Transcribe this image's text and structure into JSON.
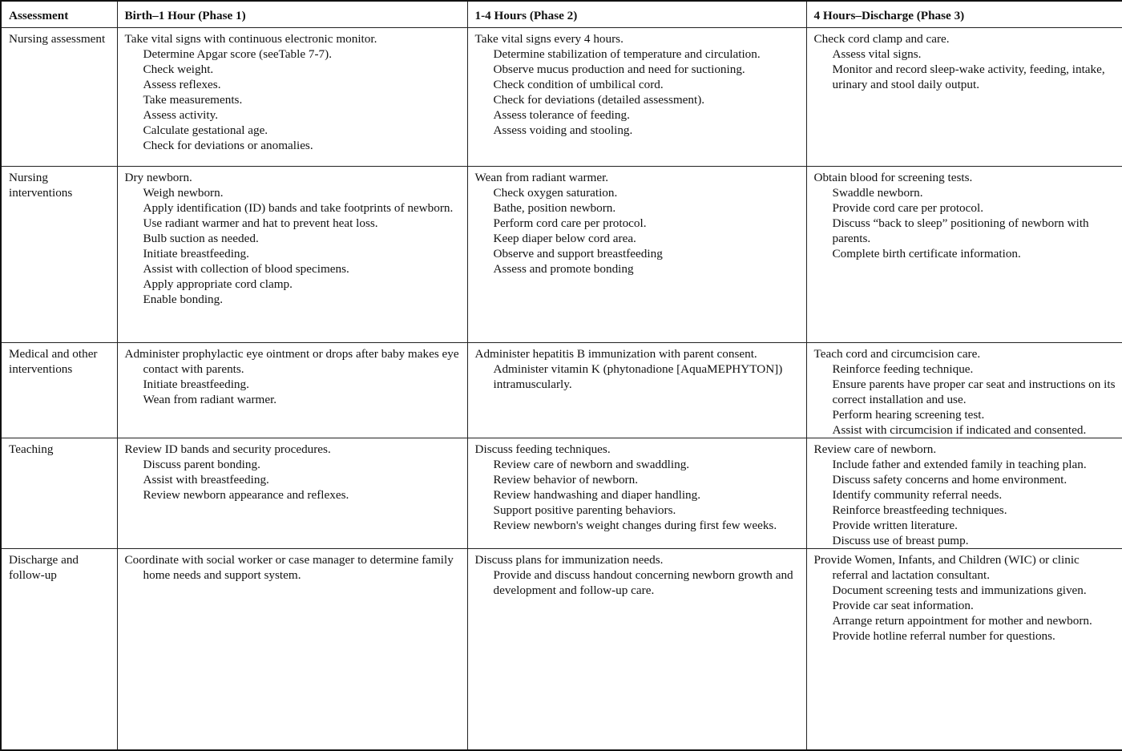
{
  "headers": [
    "Assessment",
    "Birth–1 Hour (Phase 1)",
    "1-4 Hours (Phase 2)",
    "4 Hours–Discharge (Phase 3)"
  ],
  "rows": [
    {
      "label": "Nursing assessment",
      "cells": [
        {
          "first": "Take vital signs with continuous electronic monitor.",
          "items": [
            "Determine Apgar score (seeTable 7-7).",
            "Check weight.",
            "Assess reflexes.",
            "Take measurements.",
            "Assess activity.",
            "Calculate gestational age.",
            "Check for deviations or anomalies."
          ]
        },
        {
          "first": "Take vital signs every 4 hours.",
          "items": [
            "Determine stabilization of temperature and circulation.",
            "Observe mucus production and need for suctioning.",
            "Check condition of umbilical cord.",
            "Check for deviations (detailed assessment).",
            "Assess tolerance of feeding.",
            "Assess voiding and stooling."
          ]
        },
        {
          "first": "Check cord clamp and care.",
          "items": [
            "Assess vital signs.",
            "Monitor and record sleep-wake activity, feeding, intake, urinary and stool daily output."
          ]
        }
      ]
    },
    {
      "label": "Nursing interventions",
      "cells": [
        {
          "first": "Dry newborn.",
          "items": [
            "Weigh newborn.",
            "Apply identification (ID) bands and take footprints of newborn.",
            "Use radiant warmer and hat to prevent heat loss.",
            "Bulb suction as needed.",
            "Initiate breastfeeding.",
            "Assist with collection of blood specimens.",
            "Apply appropriate cord clamp.",
            "Enable bonding."
          ]
        },
        {
          "first": "Wean from radiant warmer.",
          "items": [
            "Check oxygen saturation.",
            "Bathe, position newborn.",
            "Perform cord care per protocol.",
            "Keep diaper below cord area.",
            "Observe and support breastfeeding",
            "Assess and promote bonding"
          ]
        },
        {
          "first": "Obtain blood for screening tests.",
          "items": [
            "Swaddle newborn.",
            "Provide cord care per protocol.",
            "Discuss “back to sleep” positioning of newborn with parents.",
            "Complete birth certificate information."
          ]
        }
      ]
    },
    {
      "label": "Medical and other interventions",
      "cells": [
        {
          "first": "Administer prophylactic eye ointment or drops after baby makes eye contact with parents.",
          "items": [
            "Initiate breastfeeding.",
            "Wean from radiant warmer."
          ]
        },
        {
          "first": "Administer hepatitis B immunization with parent consent.",
          "items": [
            "Administer vitamin K (phytonadione [AquaMEPHYTON]) intramuscularly."
          ]
        },
        {
          "first": "Teach cord and circumcision care.",
          "items": [
            "Reinforce feeding technique.",
            "Ensure parents have proper car seat and instructions on its correct installation and use.",
            "Perform hearing screening test.",
            "Assist with circumcision if indicated and consented."
          ]
        }
      ]
    },
    {
      "label": "Teaching",
      "cells": [
        {
          "first": "Review ID bands and security procedures.",
          "items": [
            "Discuss parent bonding.",
            "Assist with breastfeeding.",
            "Review newborn appearance and reflexes."
          ]
        },
        {
          "first": "Discuss feeding techniques.",
          "items": [
            "Review care of newborn and swaddling.",
            "Review behavior of newborn.",
            "Review handwashing and diaper handling.",
            "Support positive parenting behaviors.",
            "Review newborn's weight changes during first few weeks."
          ]
        },
        {
          "first": "Review care of newborn.",
          "items": [
            "Include father and extended family in teaching plan.",
            "Discuss safety concerns and home environment.",
            "Identify community referral needs.",
            "Reinforce breastfeeding techniques.",
            "Provide written literature.",
            "Discuss use of breast pump."
          ]
        }
      ]
    },
    {
      "label": "Discharge and follow-up",
      "cells": [
        {
          "first": "Coordinate with social worker or case manager to determine family home needs and support system.",
          "items": []
        },
        {
          "first": "Discuss plans for immunization needs.",
          "items": [
            "Provide and discuss handout concerning newborn growth and development and follow-up care."
          ]
        },
        {
          "first": "Provide Women, Infants, and Children (WIC) or clinic referral and lactation consultant.",
          "items": [
            "Document screening tests and immunizations given.",
            "Provide car seat information.",
            "Arrange return appointment for mother and newborn.",
            "Provide hotline referral number for questions."
          ]
        }
      ]
    }
  ]
}
